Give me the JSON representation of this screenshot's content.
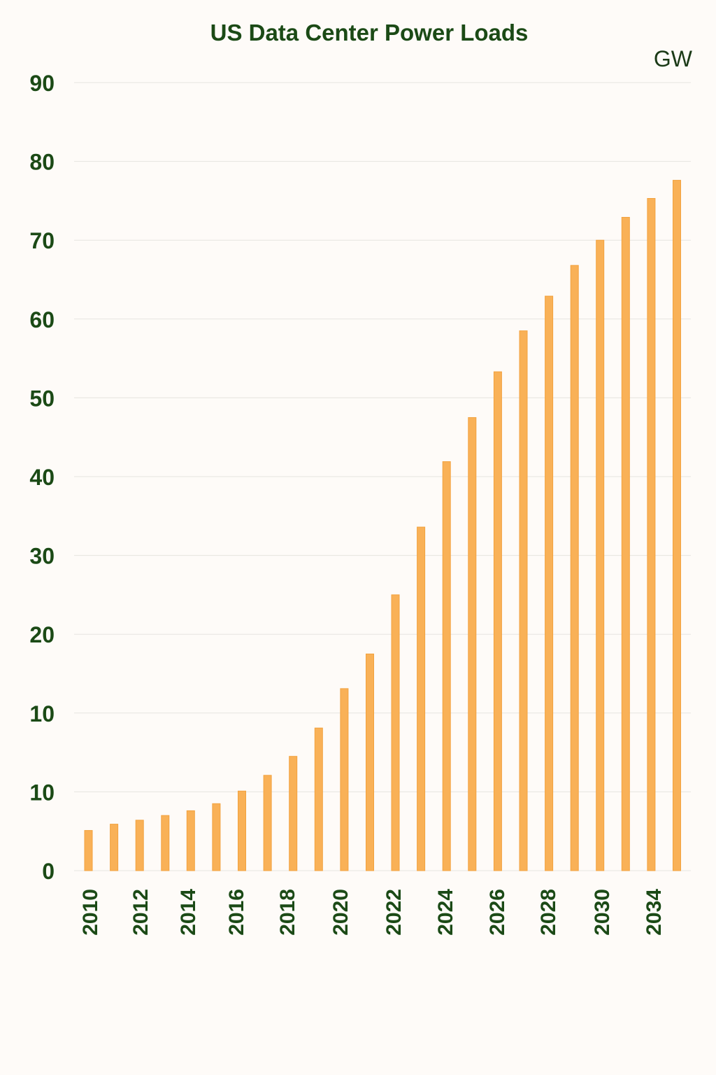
{
  "chart_data": {
    "type": "bar",
    "title": "US Data Center Power Loads",
    "unit_label": "GW",
    "y_tick_labels": [
      "0",
      "10",
      "10",
      "20",
      "30",
      "40",
      "50",
      "60",
      "70",
      "80",
      "90"
    ],
    "x_tick_labels": [
      "2010",
      "2012",
      "2014",
      "2016",
      "2018",
      "2020",
      "2022",
      "2024",
      "2026",
      "2028",
      "2030",
      "2034"
    ],
    "values": [
      5.1,
      5.9,
      6.4,
      7.0,
      7.6,
      8.5,
      10.1,
      12.1,
      14.5,
      18.1,
      23.1,
      27.5,
      35.0,
      43.6,
      51.9,
      57.5,
      63.3,
      68.5,
      72.9,
      76.8,
      80.0,
      82.9,
      85.3,
      87.6
    ],
    "ylim": [
      0,
      100
    ],
    "grid": true,
    "legend": false
  },
  "colors": {
    "bar": "#f9b157",
    "text": "#1b4a16",
    "background": "#fefbf8"
  }
}
